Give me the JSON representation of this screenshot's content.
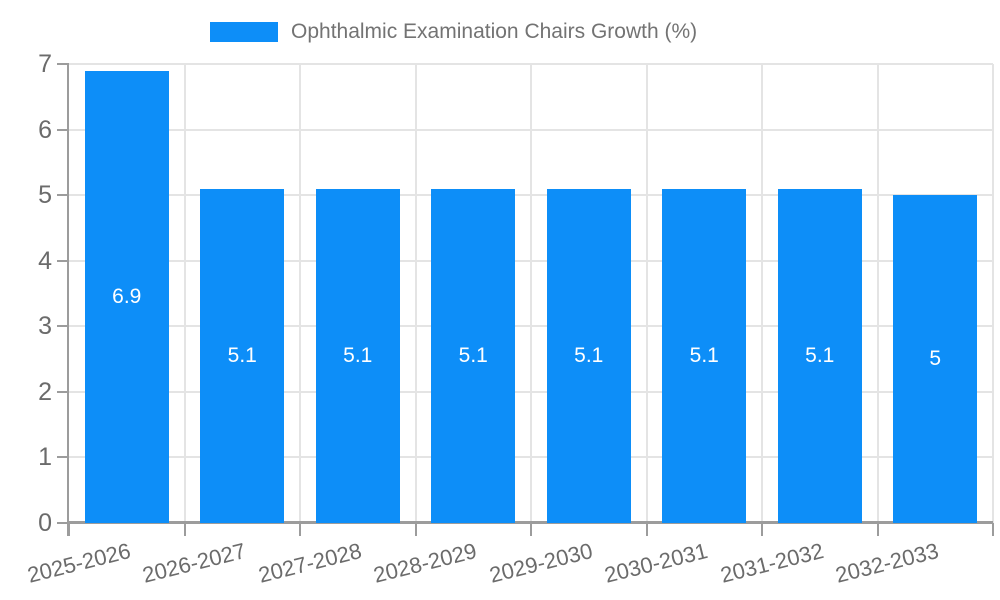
{
  "legend": {
    "label": "Ophthalmic Examination Chairs Growth (%)"
  },
  "chart_data": {
    "type": "bar",
    "title": "Ophthalmic Examination Chairs Growth (%)",
    "categories": [
      "2025-2026",
      "2026-2027",
      "2027-2028",
      "2028-2029",
      "2029-2030",
      "2030-2031",
      "2031-2032",
      "2032-2033"
    ],
    "values": [
      6.9,
      5.1,
      5.1,
      5.1,
      5.1,
      5.1,
      5.1,
      5
    ],
    "bar_labels": [
      "6.9",
      "5.1",
      "5.1",
      "5.1",
      "5.1",
      "5.1",
      "5.1",
      "5"
    ],
    "xlabel": "",
    "ylabel": "",
    "ylim": [
      0,
      7
    ],
    "ytick_step": 1,
    "yticks": [
      "0",
      "1",
      "2",
      "3",
      "4",
      "5",
      "6",
      "7"
    ],
    "grid": true,
    "legend_position": "top",
    "colors": {
      "bar": "#0d8ef8",
      "axis": "#9c9c9c",
      "grid": "#e4e4e4",
      "text": "#6b6b6b",
      "bar_label": "#ffffff"
    }
  }
}
